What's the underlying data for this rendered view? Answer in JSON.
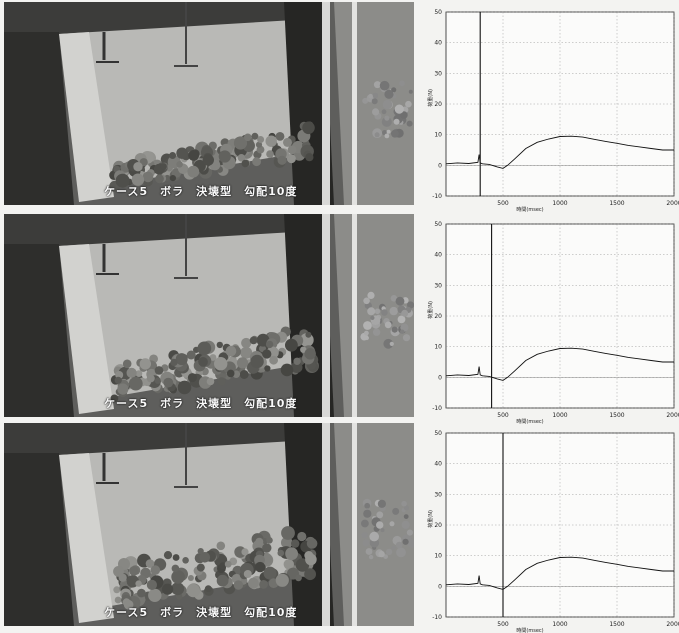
{
  "panels": [
    {
      "caption": "ケース5　ボラ　決壊型　勾配10度"
    },
    {
      "caption": "ケース5　ボラ　決壊型　勾配10度"
    },
    {
      "caption": "ケース5　ボラ　決壊型　勾配10度"
    }
  ],
  "chart_data": [
    {
      "type": "line",
      "xlabel": "時間(msec)",
      "ylabel": "荷重(N)",
      "xlim": [
        0,
        2000
      ],
      "ylim": [
        -10,
        50
      ],
      "xticks": [
        "500",
        "1000",
        "1500",
        "2000"
      ],
      "yticks": [
        "50",
        "40",
        "30",
        "20",
        "10",
        "0",
        "-10"
      ],
      "grid": true,
      "marker_x": 300,
      "series": [
        {
          "x": [
            0,
            100,
            200,
            280,
            290,
            300,
            320,
            380,
            450,
            500,
            540,
            600,
            700,
            800,
            900,
            1000,
            1100,
            1200,
            1300,
            1400,
            1500,
            1600,
            1700,
            1800,
            1900,
            2000
          ],
          "y": [
            0.5,
            0.8,
            0.6,
            1.0,
            3.5,
            0.8,
            0.5,
            0.3,
            -0.5,
            -1.0,
            0.0,
            2.0,
            5.5,
            7.5,
            8.6,
            9.4,
            9.5,
            9.2,
            8.5,
            7.8,
            7.2,
            6.5,
            6.0,
            5.5,
            5.0,
            5.0
          ]
        }
      ]
    },
    {
      "type": "line",
      "xlabel": "時間(msec)",
      "ylabel": "荷重(N)",
      "xlim": [
        0,
        2000
      ],
      "ylim": [
        -10,
        50
      ],
      "xticks": [
        "500",
        "1000",
        "1500",
        "2000"
      ],
      "yticks": [
        "50",
        "40",
        "30",
        "20",
        "10",
        "0",
        "-10"
      ],
      "grid": true,
      "marker_x": 400,
      "series": [
        {
          "x": [
            0,
            100,
            200,
            280,
            290,
            300,
            320,
            380,
            450,
            500,
            540,
            600,
            700,
            800,
            900,
            1000,
            1100,
            1200,
            1300,
            1400,
            1500,
            1600,
            1700,
            1800,
            1900,
            2000
          ],
          "y": [
            0.5,
            0.8,
            0.6,
            1.0,
            3.5,
            0.8,
            0.5,
            0.3,
            -0.5,
            -1.0,
            0.0,
            2.0,
            5.5,
            7.5,
            8.6,
            9.4,
            9.5,
            9.2,
            8.5,
            7.8,
            7.2,
            6.5,
            6.0,
            5.5,
            5.0,
            5.0
          ]
        }
      ]
    },
    {
      "type": "line",
      "xlabel": "時間(msec)",
      "ylabel": "荷重(N)",
      "xlim": [
        0,
        2000
      ],
      "ylim": [
        -10,
        50
      ],
      "xticks": [
        "500",
        "1000",
        "1500",
        "2000"
      ],
      "yticks": [
        "50",
        "40",
        "30",
        "20",
        "10",
        "0",
        "-10"
      ],
      "grid": true,
      "marker_x": 500,
      "series": [
        {
          "x": [
            0,
            100,
            200,
            280,
            290,
            300,
            320,
            380,
            450,
            500,
            540,
            600,
            700,
            800,
            900,
            1000,
            1100,
            1200,
            1300,
            1400,
            1500,
            1600,
            1700,
            1800,
            1900,
            2000
          ],
          "y": [
            0.5,
            0.8,
            0.6,
            1.0,
            3.5,
            0.8,
            0.5,
            0.3,
            -0.5,
            -1.0,
            0.0,
            2.0,
            5.5,
            7.5,
            8.6,
            9.4,
            9.5,
            9.2,
            8.5,
            7.8,
            7.2,
            6.5,
            6.0,
            5.5,
            5.0,
            5.0
          ]
        }
      ]
    }
  ]
}
